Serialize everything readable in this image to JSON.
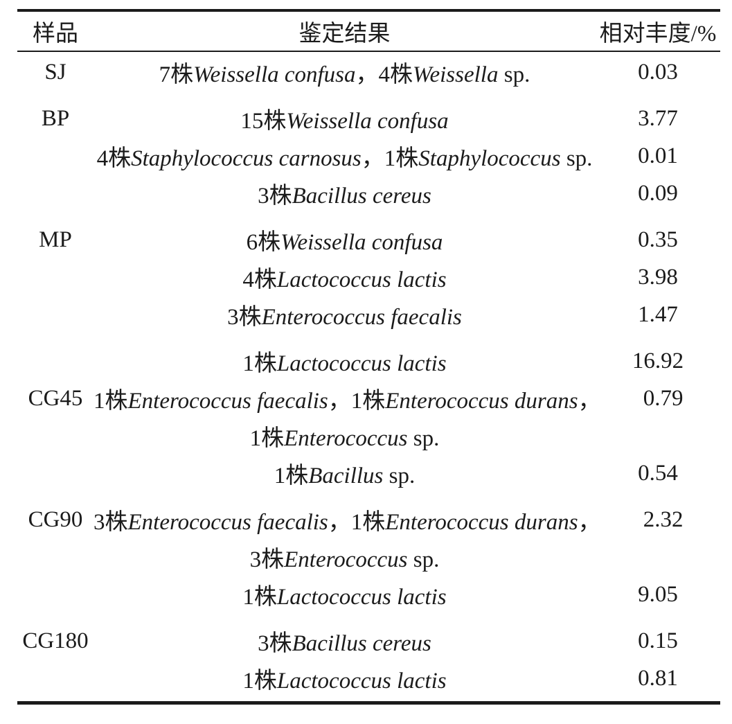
{
  "page": {
    "background_color": "#ffffff",
    "text_color": "#1b1b1b"
  },
  "table": {
    "headers": {
      "sample": "样品",
      "result": "鉴定结果",
      "abundance": "相对丰度/%"
    },
    "groups": [
      {
        "sample": "SJ",
        "label_row": 0,
        "rows": [
          {
            "segments": [
              {
                "t": "7株"
              },
              {
                "t": "Weissella confusa",
                "i": true
              },
              {
                "t": "，4株"
              },
              {
                "t": "Weissella",
                "i": true
              },
              {
                "t": " sp."
              }
            ],
            "value": "0.03"
          }
        ]
      },
      {
        "sample": "BP",
        "label_row": 0,
        "rows": [
          {
            "segments": [
              {
                "t": "15株"
              },
              {
                "t": "Weissella confusa",
                "i": true
              }
            ],
            "value": "3.77"
          },
          {
            "segments": [
              {
                "t": "4株"
              },
              {
                "t": "Staphylococcus carnosus",
                "i": true
              },
              {
                "t": "，1株"
              },
              {
                "t": "Staphylococcus",
                "i": true
              },
              {
                "t": " sp."
              }
            ],
            "value": "0.01"
          },
          {
            "segments": [
              {
                "t": "3株"
              },
              {
                "t": "Bacillus cereus",
                "i": true
              }
            ],
            "value": "0.09"
          }
        ]
      },
      {
        "sample": "MP",
        "label_row": 0,
        "rows": [
          {
            "segments": [
              {
                "t": "6株"
              },
              {
                "t": "Weissella confusa",
                "i": true
              }
            ],
            "value": "0.35"
          },
          {
            "segments": [
              {
                "t": "4株"
              },
              {
                "t": "Lactococcus lactis",
                "i": true
              }
            ],
            "value": "3.98"
          },
          {
            "segments": [
              {
                "t": "3株"
              },
              {
                "t": "Enterococcus faecalis",
                "i": true
              }
            ],
            "value": "1.47"
          }
        ]
      },
      {
        "sample": "CG45",
        "label_row": 1,
        "rows": [
          {
            "segments": [
              {
                "t": "1株"
              },
              {
                "t": "Lactococcus lactis",
                "i": true
              }
            ],
            "value": "16.92"
          },
          {
            "segments": [
              {
                "t": "1株"
              },
              {
                "t": "Enterococcus faecalis",
                "i": true
              },
              {
                "t": "，1株"
              },
              {
                "t": "Enterococcus durans",
                "i": true
              },
              {
                "t": "，"
              }
            ],
            "value": "0.79"
          },
          {
            "segments": [
              {
                "t": "1株"
              },
              {
                "t": "Enterococcus",
                "i": true
              },
              {
                "t": " sp."
              }
            ],
            "value": ""
          },
          {
            "segments": [
              {
                "t": "1株"
              },
              {
                "t": "Bacillus",
                "i": true
              },
              {
                "t": " sp."
              }
            ],
            "value": "0.54"
          }
        ]
      },
      {
        "sample": "CG90",
        "label_row": 0,
        "rows": [
          {
            "segments": [
              {
                "t": "3株"
              },
              {
                "t": "Enterococcus faecalis",
                "i": true
              },
              {
                "t": "，1株"
              },
              {
                "t": "Enterococcus durans",
                "i": true
              },
              {
                "t": "，"
              }
            ],
            "value": "2.32"
          },
          {
            "segments": [
              {
                "t": "3株"
              },
              {
                "t": "Enterococcus",
                "i": true
              },
              {
                "t": " sp."
              }
            ],
            "value": ""
          },
          {
            "segments": [
              {
                "t": "1株"
              },
              {
                "t": "Lactococcus lactis",
                "i": true
              }
            ],
            "value": "9.05"
          }
        ]
      },
      {
        "sample": "CG180",
        "label_row": 0,
        "rows": [
          {
            "segments": [
              {
                "t": "3株"
              },
              {
                "t": "Bacillus cereus",
                "i": true
              }
            ],
            "value": "0.15"
          },
          {
            "segments": [
              {
                "t": "1株"
              },
              {
                "t": "Lactococcus lactis",
                "i": true
              }
            ],
            "value": "0.81"
          }
        ]
      }
    ]
  }
}
